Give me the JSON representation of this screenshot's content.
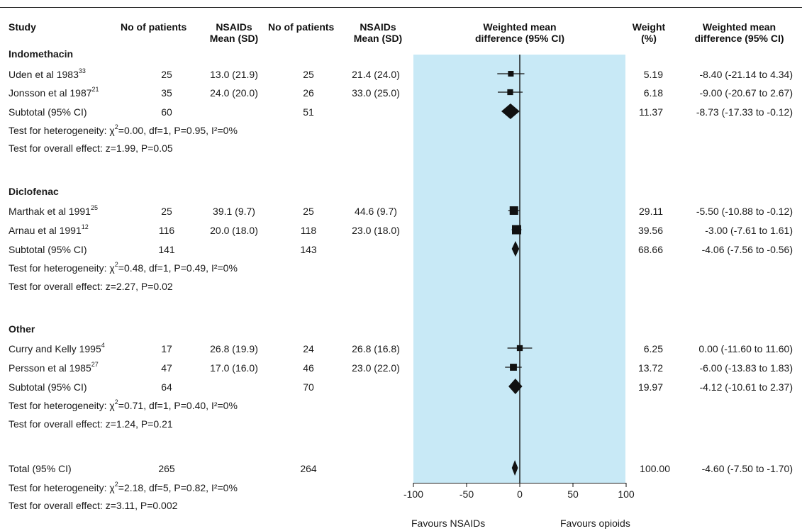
{
  "columns": {
    "study": "Study",
    "n1": "No of patients",
    "mean1_line1": "NSAIDs",
    "mean1_line2": "Mean (SD)",
    "n2": "No of patients",
    "mean2_line1": "NSAIDs",
    "mean2_line2": "Mean (SD)",
    "wmd_line1": "Weighted mean",
    "wmd_line2": "difference (95% CI)",
    "weight_line1": "Weight",
    "weight_line2": "(%)",
    "wmdtxt_line1": "Weighted mean",
    "wmdtxt_line2": "difference (95% CI)"
  },
  "groups": [
    {
      "name": "Indomethacin",
      "studies": [
        {
          "name": "Uden et al 1983",
          "ref": "33",
          "n1": "25",
          "mean1": "13.0 (21.9)",
          "n2": "25",
          "mean2": "21.4 (24.0)",
          "weight": "5.19",
          "ci_text": "-8.40 (-21.14 to 4.34)"
        },
        {
          "name": "Jonsson et al 1987",
          "ref": "21",
          "n1": "35",
          "mean1": "24.0 (20.0)",
          "n2": "26",
          "mean2": "33.0 (25.0)",
          "weight": "6.18",
          "ci_text": "-9.00 (-20.67 to 2.67)"
        }
      ],
      "subtotal": {
        "label": "Subtotal (95% CI)",
        "n1": "60",
        "n2": "51",
        "weight": "11.37",
        "ci_text": "-8.73 (-17.33 to -0.12)"
      },
      "heterogeneity": {
        "prefix": "Test for heterogeneity: ",
        "chi": "χ",
        "rest": "=0.00, df=1, P=0.95, I²=0%"
      },
      "overall": "Test for overall effect: z=1.99, P=0.05"
    },
    {
      "name": "Diclofenac",
      "studies": [
        {
          "name": "Marthak et al 1991",
          "ref": "25",
          "n1": "25",
          "mean1": "39.1 (9.7)",
          "n2": "25",
          "mean2": "44.6 (9.7)",
          "weight": "29.11",
          "ci_text": "-5.50 (-10.88 to -0.12)"
        },
        {
          "name": "Arnau et al 1991",
          "ref": "12",
          "n1": "116",
          "mean1": "20.0 (18.0)",
          "n2": "118",
          "mean2": "23.0 (18.0)",
          "weight": "39.56",
          "ci_text": "-3.00 (-7.61 to 1.61)"
        }
      ],
      "subtotal": {
        "label": "Subtotal (95% CI)",
        "n1": "141",
        "n2": "143",
        "weight": "68.66",
        "ci_text": "-4.06 (-7.56 to -0.56)"
      },
      "heterogeneity": {
        "prefix": "Test for heterogeneity: ",
        "chi": "χ",
        "rest": "=0.48, df=1, P=0.49, I²=0%"
      },
      "overall": "Test for overall effect: z=2.27, P=0.02"
    },
    {
      "name": "Other",
      "studies": [
        {
          "name": "Curry and Kelly 1995",
          "ref": "4",
          "n1": "17",
          "mean1": "26.8 (19.9)",
          "n2": "24",
          "mean2": "26.8 (16.8)",
          "weight": "6.25",
          "ci_text": "0.00 (-11.60 to 11.60)"
        },
        {
          "name": "Persson et al 1985",
          "ref": "27",
          "n1": "47",
          "mean1": "17.0 (16.0)",
          "n2": "46",
          "mean2": "23.0 (22.0)",
          "weight": "13.72",
          "ci_text": "-6.00 (-13.83 to 1.83)"
        }
      ],
      "subtotal": {
        "label": "Subtotal (95% CI)",
        "n1": "64",
        "n2": "70",
        "weight": "19.97",
        "ci_text": "-4.12 (-10.61 to 2.37)"
      },
      "heterogeneity": {
        "prefix": "Test for heterogeneity: ",
        "chi": "χ",
        "rest": "=0.71, df=1, P=0.40, I²=0%"
      },
      "overall": "Test for overall effect: z=1.24, P=0.21"
    }
  ],
  "total": {
    "label": "Total (95% CI)",
    "n1": "265",
    "n2": "264",
    "weight": "100.00",
    "ci_text": "-4.60 (-7.50 to -1.70)",
    "heterogeneity": {
      "prefix": "Test for heterogeneity: ",
      "chi": "χ",
      "rest": "=2.18, df=5, P=0.82, I²=0%"
    },
    "overall": "Test for overall effect: z=3.11, P=0.002"
  },
  "axis": {
    "favours_left": "Favours NSAIDs",
    "favours_right": "Favours opioids"
  },
  "colors": {
    "plot_background": "#c8e9f6",
    "marker": "#111111",
    "text": "#1a1a1a"
  },
  "chart_data": {
    "type": "forest",
    "xlim": [
      -100,
      100
    ],
    "xticks": [
      -100,
      -50,
      0,
      50,
      100
    ],
    "reference_line": 0,
    "rows": [
      {
        "label": "Uden et al 1983",
        "kind": "study",
        "estimate": -8.4,
        "ci": [
          -21.14,
          4.34
        ],
        "weight": 5.19
      },
      {
        "label": "Jonsson et al 1987",
        "kind": "study",
        "estimate": -9.0,
        "ci": [
          -20.67,
          2.67
        ],
        "weight": 6.18
      },
      {
        "label": "Subtotal (95% CI)",
        "kind": "subtotal",
        "estimate": -8.73,
        "ci": [
          -17.33,
          -0.12
        ],
        "weight": 11.37
      },
      {
        "label": "Marthak et al 1991",
        "kind": "study",
        "estimate": -5.5,
        "ci": [
          -10.88,
          -0.12
        ],
        "weight": 29.11
      },
      {
        "label": "Arnau et al 1991",
        "kind": "study",
        "estimate": -3.0,
        "ci": [
          -7.61,
          1.61
        ],
        "weight": 39.56
      },
      {
        "label": "Subtotal (95% CI)",
        "kind": "subtotal",
        "estimate": -4.06,
        "ci": [
          -7.56,
          -0.56
        ],
        "weight": 68.66
      },
      {
        "label": "Curry and Kelly 1995",
        "kind": "study",
        "estimate": 0.0,
        "ci": [
          -11.6,
          11.6
        ],
        "weight": 6.25
      },
      {
        "label": "Persson et al 1985",
        "kind": "study",
        "estimate": -6.0,
        "ci": [
          -13.83,
          1.83
        ],
        "weight": 13.72
      },
      {
        "label": "Subtotal (95% CI)",
        "kind": "subtotal",
        "estimate": -4.12,
        "ci": [
          -10.61,
          2.37
        ],
        "weight": 19.97
      },
      {
        "label": "Total (95% CI)",
        "kind": "total",
        "estimate": -4.6,
        "ci": [
          -7.5,
          -1.7
        ],
        "weight": 100.0
      }
    ]
  }
}
